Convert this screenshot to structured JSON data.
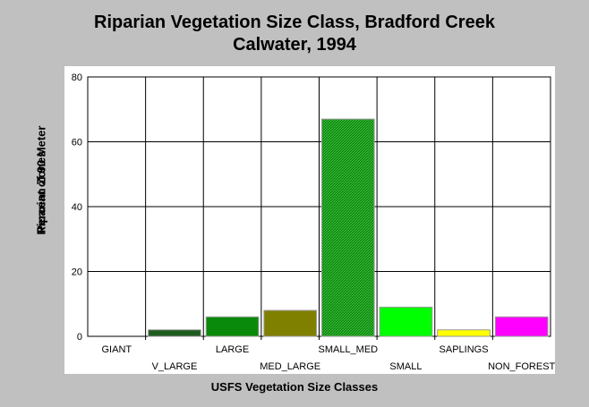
{
  "chart_data": {
    "type": "bar",
    "title": [
      "Riparian Vegetation Size Class, Bradford Creek",
      "Calwater, 1994"
    ],
    "xlabel": "USFS Vegetation Size Classes",
    "ylabel": [
      "Percent of 90 Meter",
      "Riparian Zones"
    ],
    "categories": [
      "GIANT",
      "V_LARGE",
      "LARGE",
      "MED_LARGE",
      "SMALL_MED",
      "SMALL",
      "SAPLINGS",
      "NON_FOREST"
    ],
    "values": [
      0,
      2,
      6,
      8,
      67,
      9,
      2,
      6
    ],
    "colors": [
      "#00aa00",
      "#1e5b1e",
      "#0a8a0a",
      "#808000",
      "#22aa22",
      "#00ff00",
      "#ffff00",
      "#ff00ff"
    ],
    "yticks": [
      0,
      20,
      40,
      60,
      80
    ],
    "ylim": [
      0,
      80
    ],
    "grid": true
  }
}
